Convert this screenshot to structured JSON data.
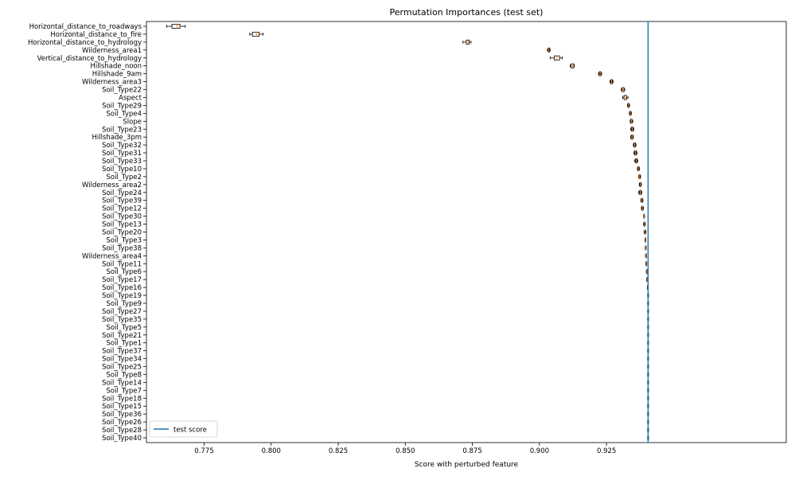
{
  "chart_data": {
    "type": "boxplot",
    "title": "Permutation Importances (test set)",
    "xlabel": "Score with perturbed feature",
    "ylabel": "",
    "xlim": [
      0.7535,
      0.992
    ],
    "xticks": [
      0.775,
      0.8,
      0.825,
      0.85,
      0.875,
      0.9,
      0.925
    ],
    "xtick_labels": [
      "0.775",
      "0.800",
      "0.825",
      "0.850",
      "0.875",
      "0.900",
      "0.925"
    ],
    "orientation": "horizontal",
    "test_score": 0.9405,
    "legend": {
      "label": "test score",
      "location": "lower-left"
    },
    "colors": {
      "box": "#000000",
      "median": "#ff7f0e",
      "test_score_line": "#1f77b4"
    },
    "features": [
      {
        "name": "Horizontal_distance_to_roadways",
        "min": 0.761,
        "q1": 0.763,
        "median": 0.765,
        "q3": 0.766,
        "max": 0.768
      },
      {
        "name": "Horizontal_distance_to_fire",
        "min": 0.792,
        "q1": 0.793,
        "median": 0.7945,
        "q3": 0.7955,
        "max": 0.797
      },
      {
        "name": "Horizontal_distance_to_hydrology",
        "min": 0.8715,
        "q1": 0.8727,
        "median": 0.8733,
        "q3": 0.8738,
        "max": 0.8745
      },
      {
        "name": "Wilderness_area1",
        "min": 0.903,
        "q1": 0.9033,
        "median": 0.9036,
        "q3": 0.9038,
        "max": 0.904
      },
      {
        "name": "Vertical_distance_to_hydrology",
        "min": 0.904,
        "q1": 0.9055,
        "median": 0.9065,
        "q3": 0.9075,
        "max": 0.9085
      },
      {
        "name": "Hillshade_noon",
        "min": 0.9115,
        "q1": 0.9118,
        "median": 0.9123,
        "q3": 0.9128,
        "max": 0.913
      },
      {
        "name": "Hillshade_9am",
        "min": 0.922,
        "q1": 0.9223,
        "median": 0.9226,
        "q3": 0.9229,
        "max": 0.9232
      },
      {
        "name": "Wilderness_area3",
        "min": 0.9263,
        "q1": 0.9266,
        "median": 0.9269,
        "q3": 0.9272,
        "max": 0.9275
      },
      {
        "name": "Soil_Type22",
        "min": 0.9305,
        "q1": 0.9308,
        "median": 0.9311,
        "q3": 0.9315,
        "max": 0.9318
      },
      {
        "name": "Aspect",
        "min": 0.931,
        "q1": 0.9315,
        "median": 0.932,
        "q3": 0.9325,
        "max": 0.933
      },
      {
        "name": "Soil_Type29",
        "min": 0.9328,
        "q1": 0.933,
        "median": 0.9332,
        "q3": 0.9334,
        "max": 0.9336
      },
      {
        "name": "Soil_Type4",
        "min": 0.9335,
        "q1": 0.9337,
        "median": 0.9339,
        "q3": 0.9341,
        "max": 0.9343
      },
      {
        "name": "Slope",
        "min": 0.9338,
        "q1": 0.934,
        "median": 0.9342,
        "q3": 0.9345,
        "max": 0.9348
      },
      {
        "name": "Soil_Type23",
        "min": 0.934,
        "q1": 0.9343,
        "median": 0.9346,
        "q3": 0.9349,
        "max": 0.9352
      },
      {
        "name": "Hillshade_3pm",
        "min": 0.934,
        "q1": 0.9342,
        "median": 0.9345,
        "q3": 0.9348,
        "max": 0.935
      },
      {
        "name": "Soil_Type32",
        "min": 0.935,
        "q1": 0.9352,
        "median": 0.9355,
        "q3": 0.9358,
        "max": 0.936
      },
      {
        "name": "Soil_Type31",
        "min": 0.9352,
        "q1": 0.9355,
        "median": 0.9358,
        "q3": 0.9361,
        "max": 0.9364
      },
      {
        "name": "Soil_Type33",
        "min": 0.9355,
        "q1": 0.9358,
        "median": 0.9361,
        "q3": 0.9364,
        "max": 0.9367
      },
      {
        "name": "Soil_Type10",
        "min": 0.9365,
        "q1": 0.9367,
        "median": 0.9369,
        "q3": 0.9371,
        "max": 0.9373
      },
      {
        "name": "Soil_Type2",
        "min": 0.937,
        "q1": 0.9372,
        "median": 0.9373,
        "q3": 0.9375,
        "max": 0.9377
      },
      {
        "name": "Wilderness_area2",
        "min": 0.9372,
        "q1": 0.9374,
        "median": 0.9376,
        "q3": 0.9378,
        "max": 0.938
      },
      {
        "name": "Soil_Type24",
        "min": 0.937,
        "q1": 0.9373,
        "median": 0.9376,
        "q3": 0.9379,
        "max": 0.9382
      },
      {
        "name": "Soil_Type39",
        "min": 0.9378,
        "q1": 0.938,
        "median": 0.9382,
        "q3": 0.9384,
        "max": 0.9386
      },
      {
        "name": "Soil_Type12",
        "min": 0.938,
        "q1": 0.9382,
        "median": 0.9384,
        "q3": 0.9386,
        "max": 0.9388
      },
      {
        "name": "Soil_Type30",
        "min": 0.9388,
        "q1": 0.9389,
        "median": 0.939,
        "q3": 0.9391,
        "max": 0.9392
      },
      {
        "name": "Soil_Type13",
        "min": 0.9388,
        "q1": 0.939,
        "median": 0.9392,
        "q3": 0.9393,
        "max": 0.9395
      },
      {
        "name": "Soil_Type20",
        "min": 0.939,
        "q1": 0.9392,
        "median": 0.9393,
        "q3": 0.9395,
        "max": 0.9397
      },
      {
        "name": "Soil_Type3",
        "min": 0.9393,
        "q1": 0.9394,
        "median": 0.9395,
        "q3": 0.9396,
        "max": 0.9397
      },
      {
        "name": "Soil_Type38",
        "min": 0.9394,
        "q1": 0.9395,
        "median": 0.9396,
        "q3": 0.9397,
        "max": 0.9398
      },
      {
        "name": "Wilderness_area4",
        "min": 0.9395,
        "q1": 0.9396,
        "median": 0.9397,
        "q3": 0.9398,
        "max": 0.9399
      },
      {
        "name": "Soil_Type11",
        "min": 0.9396,
        "q1": 0.9397,
        "median": 0.9398,
        "q3": 0.9399,
        "max": 0.94
      },
      {
        "name": "Soil_Type6",
        "min": 0.9398,
        "q1": 0.9399,
        "median": 0.94,
        "q3": 0.9401,
        "max": 0.9402
      },
      {
        "name": "Soil_Type17",
        "min": 0.9399,
        "q1": 0.94,
        "median": 0.9401,
        "q3": 0.9402,
        "max": 0.9403
      },
      {
        "name": "Soil_Type16",
        "min": 0.9402,
        "q1": 0.9403,
        "median": 0.9404,
        "q3": 0.9405,
        "max": 0.9406
      },
      {
        "name": "Soil_Type19",
        "min": 0.9403,
        "q1": 0.9404,
        "median": 0.9405,
        "q3": 0.9406,
        "max": 0.9407
      },
      {
        "name": "Soil_Type9",
        "min": 0.9403,
        "q1": 0.9404,
        "median": 0.9405,
        "q3": 0.9406,
        "max": 0.9407
      },
      {
        "name": "Soil_Type27",
        "min": 0.9403,
        "q1": 0.9404,
        "median": 0.9405,
        "q3": 0.9406,
        "max": 0.9407
      },
      {
        "name": "Soil_Type35",
        "min": 0.9403,
        "q1": 0.9404,
        "median": 0.9405,
        "q3": 0.9406,
        "max": 0.9407
      },
      {
        "name": "Soil_Type5",
        "min": 0.9403,
        "q1": 0.9404,
        "median": 0.9405,
        "q3": 0.9406,
        "max": 0.9407
      },
      {
        "name": "Soil_Type21",
        "min": 0.9403,
        "q1": 0.9404,
        "median": 0.9405,
        "q3": 0.9406,
        "max": 0.9407
      },
      {
        "name": "Soil_Type1",
        "min": 0.9403,
        "q1": 0.9404,
        "median": 0.9405,
        "q3": 0.9406,
        "max": 0.9407
      },
      {
        "name": "Soil_Type37",
        "min": 0.9403,
        "q1": 0.9404,
        "median": 0.9405,
        "q3": 0.9406,
        "max": 0.9407
      },
      {
        "name": "Soil_Type34",
        "min": 0.9403,
        "q1": 0.9404,
        "median": 0.9405,
        "q3": 0.9406,
        "max": 0.9407
      },
      {
        "name": "Soil_Type25",
        "min": 0.9403,
        "q1": 0.9404,
        "median": 0.9405,
        "q3": 0.9406,
        "max": 0.9407
      },
      {
        "name": "Soil_Type8",
        "min": 0.9403,
        "q1": 0.9404,
        "median": 0.9405,
        "q3": 0.9406,
        "max": 0.9407
      },
      {
        "name": "Soil_Type14",
        "min": 0.9403,
        "q1": 0.9404,
        "median": 0.9405,
        "q3": 0.9406,
        "max": 0.9407
      },
      {
        "name": "Soil_Type7",
        "min": 0.9403,
        "q1": 0.9404,
        "median": 0.9405,
        "q3": 0.9406,
        "max": 0.9407
      },
      {
        "name": "Soil_Type18",
        "min": 0.9403,
        "q1": 0.9404,
        "median": 0.9405,
        "q3": 0.9406,
        "max": 0.9407
      },
      {
        "name": "Soil_Type15",
        "min": 0.9403,
        "q1": 0.9404,
        "median": 0.9405,
        "q3": 0.9406,
        "max": 0.9407
      },
      {
        "name": "Soil_Type36",
        "min": 0.9403,
        "q1": 0.9404,
        "median": 0.9405,
        "q3": 0.9406,
        "max": 0.9407
      },
      {
        "name": "Soil_Type26",
        "min": 0.9403,
        "q1": 0.9404,
        "median": 0.9405,
        "q3": 0.9406,
        "max": 0.9407
      },
      {
        "name": "Soil_Type28",
        "min": 0.9403,
        "q1": 0.9404,
        "median": 0.9405,
        "q3": 0.9406,
        "max": 0.9407
      },
      {
        "name": "Soil_Type40",
        "min": 0.9403,
        "q1": 0.9404,
        "median": 0.9405,
        "q3": 0.9406,
        "max": 0.9407
      }
    ]
  }
}
